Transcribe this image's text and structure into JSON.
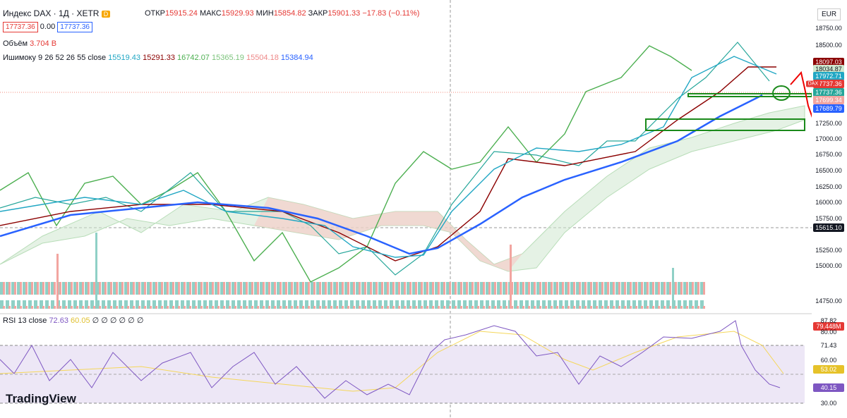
{
  "header": {
    "symbol": "Индекс DAX · 1Д · XETR",
    "badge": "D",
    "open_label": "ОТКР",
    "open": "15915.24",
    "high_label": "МАКС",
    "high": "15929.93",
    "low_label": "МИН",
    "low": "15854.82",
    "close_label": "ЗАКР",
    "close": "15901.33",
    "change": "−17.83 (−0.11%)",
    "currency": "EUR"
  },
  "price_boxes": [
    "17737.36",
    "0.00",
    "17737.36"
  ],
  "volume": {
    "label": "Объём",
    "value": "3.704 B"
  },
  "ichimoku": {
    "label": "Ишимоку 9 26 52 26 55 close",
    "values": [
      "15519.43",
      "15291.33",
      "16742.07",
      "15365.19",
      "15504.18",
      "15384.94"
    ]
  },
  "rsi": {
    "label": "RSI 13 close",
    "values": [
      "72.63",
      "60.05",
      "∅ ∅ ∅ ∅ ∅ ∅"
    ]
  },
  "price_axis": [
    "18750.00",
    "18500.00",
    "18097.03",
    "18034.87",
    "17972.71",
    "DAX",
    "17737.36",
    "17737.36",
    "17699.34",
    "17689.79",
    "17250.00",
    "17000.00",
    "16750.00",
    "16500.00",
    "16250.00",
    "16000.00",
    "15750.00",
    "15615.10",
    "15250.00",
    "15000.00",
    "14750.00",
    "79.448M"
  ],
  "rsi_axis": [
    "87.82",
    "80.00",
    "71.43",
    "60.00",
    "53.02",
    "40.15",
    "30.00"
  ],
  "brand": "TradingView"
}
